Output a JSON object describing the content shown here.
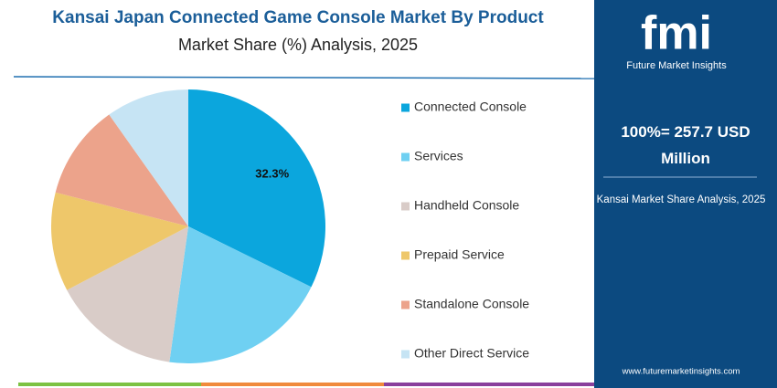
{
  "chart_data": {
    "type": "pie",
    "title": "Kansai Japan Connected Game Console Market By Product",
    "subtitle": "Market Share (%) Analysis, 2025",
    "categories": [
      "Connected Console",
      "Services",
      "Handheld Console",
      "Prepaid Service",
      "Standalone Console",
      "Other Direct Service"
    ],
    "values": [
      32.3,
      19.9,
      15.1,
      11.7,
      11.2,
      9.8
    ],
    "value_labels": [
      "32.3%",
      null,
      null,
      null,
      null,
      null
    ],
    "colors": [
      "#0ba6dd",
      "#6fd0f2",
      "#d9ccc8",
      "#eec76a",
      "#eca38b",
      "#c6e4f4"
    ],
    "legend": "right"
  },
  "panel": {
    "logo": "fmi",
    "brand": "Future Market Insights",
    "total": "100%= 257.7 USD Million",
    "caption": "Kansai Market Share Analysis, 2025",
    "url": "www.futuremarketinsights.com"
  }
}
